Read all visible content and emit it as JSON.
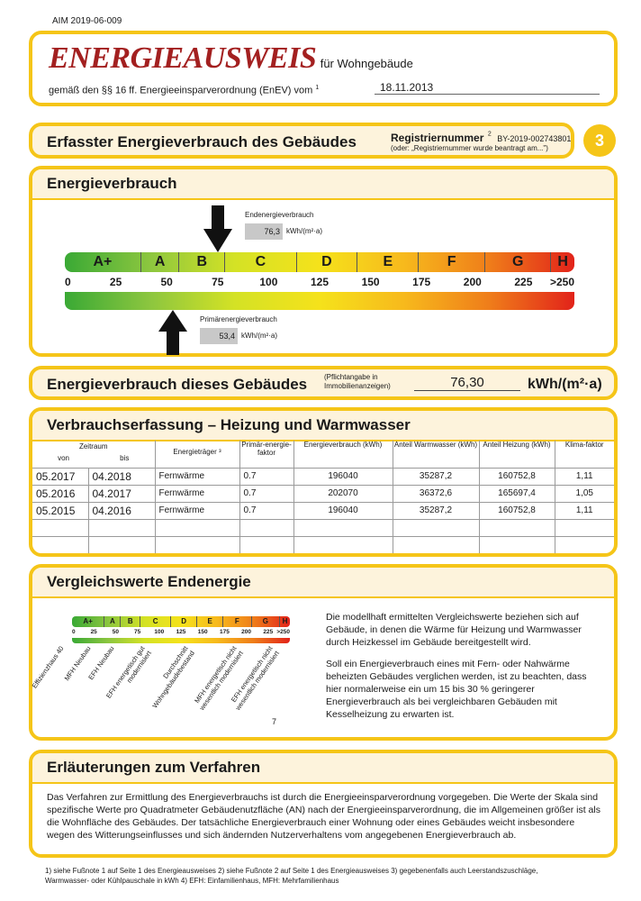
{
  "doc_id": "AIM 2019-06-009",
  "header": {
    "title": "ENERGIEAUSWEIS",
    "title_suffix": "für Wohngebäude",
    "legal": "gemäß den §§ 16 ff. Energieeinsparverordnung (EnEV) vom",
    "legal_sup": "1",
    "date": "18.11.2013"
  },
  "section3": {
    "title": "Erfasster Energieverbrauch des Gebäudes",
    "reg_label": "Registriernummer",
    "reg_sup": "2",
    "reg_value": "BY-2019-002743801",
    "reg_note": "(oder: „Registriernummer wurde beantragt am...\")",
    "page_number": "3"
  },
  "energy": {
    "title": "Energieverbrauch",
    "end_label": "Endenergieverbrauch",
    "end_value": "76,3",
    "end_unit": "kWh/(m²·a)",
    "primary_label": "Primärenergieverbrauch",
    "primary_value": "53,4",
    "primary_unit": "kWh/(m²·a)",
    "scale_classes": [
      "A+",
      "A",
      "B",
      "C",
      "D",
      "E",
      "F",
      "G",
      "H"
    ],
    "scale_ticks": [
      "0",
      "25",
      "50",
      "75",
      "100",
      "125",
      "150",
      "175",
      "200",
      "225",
      ">250"
    ]
  },
  "building_consumption": {
    "title": "Energieverbrauch dieses Gebäudes",
    "note": "(Pflichtangabe in Immobilienanzeigen)",
    "value": "76,30",
    "unit": "kWh/(m²·a)"
  },
  "consumption_table": {
    "title": "Verbrauchserfassung – Heizung und Warmwasser",
    "headers": {
      "period": "Zeitraum",
      "from": "von",
      "to": "bis",
      "carrier": "Energieträger ³",
      "primary_factor": "Primär-energie-faktor",
      "consumption": "Energieverbrauch (kWh)",
      "hot_water": "Anteil Warmwasser (kWh)",
      "heating": "Anteil Heizung (kWh)",
      "climate": "Klima-faktor"
    },
    "rows": [
      [
        "05.2017",
        "04.2018",
        "Fernwärme",
        "0.7",
        "196040",
        "35287,2",
        "160752,8",
        "1,11"
      ],
      [
        "05.2016",
        "04.2017",
        "Fernwärme",
        "0.7",
        "202070",
        "36372,6",
        "165697,4",
        "1,05"
      ],
      [
        "05.2015",
        "04.2016",
        "Fernwärme",
        "0.7",
        "196040",
        "35287,2",
        "160752,8",
        "1,11"
      ],
      [
        "",
        "",
        "",
        "",
        "",
        "",
        "",
        ""
      ],
      [
        "",
        "",
        "",
        "",
        "",
        "",
        "",
        ""
      ]
    ]
  },
  "comparison": {
    "title": "Vergleichswerte Endenergie",
    "classes": [
      "A+",
      "A",
      "B",
      "C",
      "D",
      "E",
      "F",
      "G",
      "H"
    ],
    "ticks": [
      "0",
      "25",
      "50",
      "75",
      "100",
      "125",
      "150",
      "175",
      "200",
      "225",
      ">250"
    ],
    "rotated_labels": [
      "Effizienzhaus 40",
      "MFH Neubau",
      "EFH Neubau",
      "EFH energetisch gut modernisiert",
      "Durchschnitt Wohngebäudebestand",
      "MFH energetisch nicht wesentlich modernisiert",
      "EFH energetisch nicht wesentlich modernisiert"
    ],
    "footnote_mark": "7",
    "para1": "Die modellhaft ermittelten Vergleichswerte beziehen sich auf Gebäude, in denen die Wärme für Heizung und Warmwasser durch Heizkessel im Gebäude bereitgestellt wird.",
    "para2": "Soll ein Energieverbrauch eines mit Fern- oder Nahwärme beheizten Gebäudes verglichen werden, ist zu beachten, dass hier normalerweise ein um 15 bis 30 % geringerer Energieverbrauch als bei vergleichbaren Gebäuden mit Kesselheizung zu erwarten ist."
  },
  "explanation": {
    "title": "Erläuterungen zum Verfahren",
    "text": "Das Verfahren zur Ermittlung des Energieverbrauchs ist durch die Energieeinsparverordnung vorgegeben. Die Werte der Skala sind spezifische Werte pro Quadratmeter Gebäudenutzfläche (AN) nach der Energieeinsparverordnung, die im Allgemeinen größer ist als die Wohnfläche des Gebäudes. Der tatsächliche Energieverbrauch einer Wohnung oder eines Gebäudes weicht insbesondere wegen des Witterungseinflusses und sich ändernden Nutzerverhaltens vom angegebenen Energieverbrauch ab."
  },
  "footnotes": "1) siehe Fußnote 1 auf Seite 1 des Energieausweises    2) siehe Fußnote 2 auf Seite 1 des Energieausweises    3) gegebenenfalls auch Leerstandszuschläge, Warmwasser- oder Kühlpauschale in kWh    4) EFH: Einfamilienhaus, MFH: Mehrfamilienhaus"
}
